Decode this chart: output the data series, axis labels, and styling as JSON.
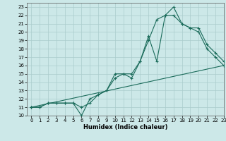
{
  "xlabel": "Humidex (Indice chaleur)",
  "bg_color": "#cce8e8",
  "line_color": "#1a6b5a",
  "grid_color": "#aacccc",
  "xlim": [
    -0.5,
    23
  ],
  "ylim": [
    10,
    23.5
  ],
  "xticks": [
    0,
    1,
    2,
    3,
    4,
    5,
    6,
    7,
    8,
    9,
    10,
    11,
    12,
    13,
    14,
    15,
    16,
    17,
    18,
    19,
    20,
    21,
    22,
    23
  ],
  "yticks": [
    10,
    11,
    12,
    13,
    14,
    15,
    16,
    17,
    18,
    19,
    20,
    21,
    22,
    23
  ],
  "line1_x": [
    0,
    1,
    2,
    3,
    4,
    5,
    6,
    7,
    8,
    9,
    10,
    11,
    12,
    13,
    14,
    15,
    16,
    17,
    18,
    19,
    20,
    21,
    22,
    23
  ],
  "line1_y": [
    11,
    11,
    11.5,
    11.5,
    11.5,
    11.5,
    11,
    11.5,
    12.5,
    13,
    15,
    15,
    14.5,
    16.5,
    19.5,
    16.5,
    22,
    23,
    21,
    20.5,
    20,
    18,
    17,
    16
  ],
  "line2_x": [
    0,
    1,
    2,
    3,
    4,
    5,
    6,
    7,
    8,
    9,
    10,
    11,
    12,
    13,
    14,
    15,
    16,
    17,
    18,
    19,
    20,
    21,
    22,
    23
  ],
  "line2_y": [
    11,
    11,
    11.5,
    11.5,
    11.5,
    11.5,
    10,
    12,
    12.5,
    13,
    14.5,
    15,
    15,
    16.5,
    19,
    21.5,
    22,
    22,
    21,
    20.5,
    20.5,
    18.5,
    17.5,
    16.5
  ],
  "line3_x": [
    0,
    23
  ],
  "line3_y": [
    11,
    16
  ],
  "marker": "+",
  "markersize": 3,
  "markeredgewidth": 0.8,
  "linewidth": 0.8,
  "tick_fontsize": 5,
  "xlabel_fontsize": 6
}
